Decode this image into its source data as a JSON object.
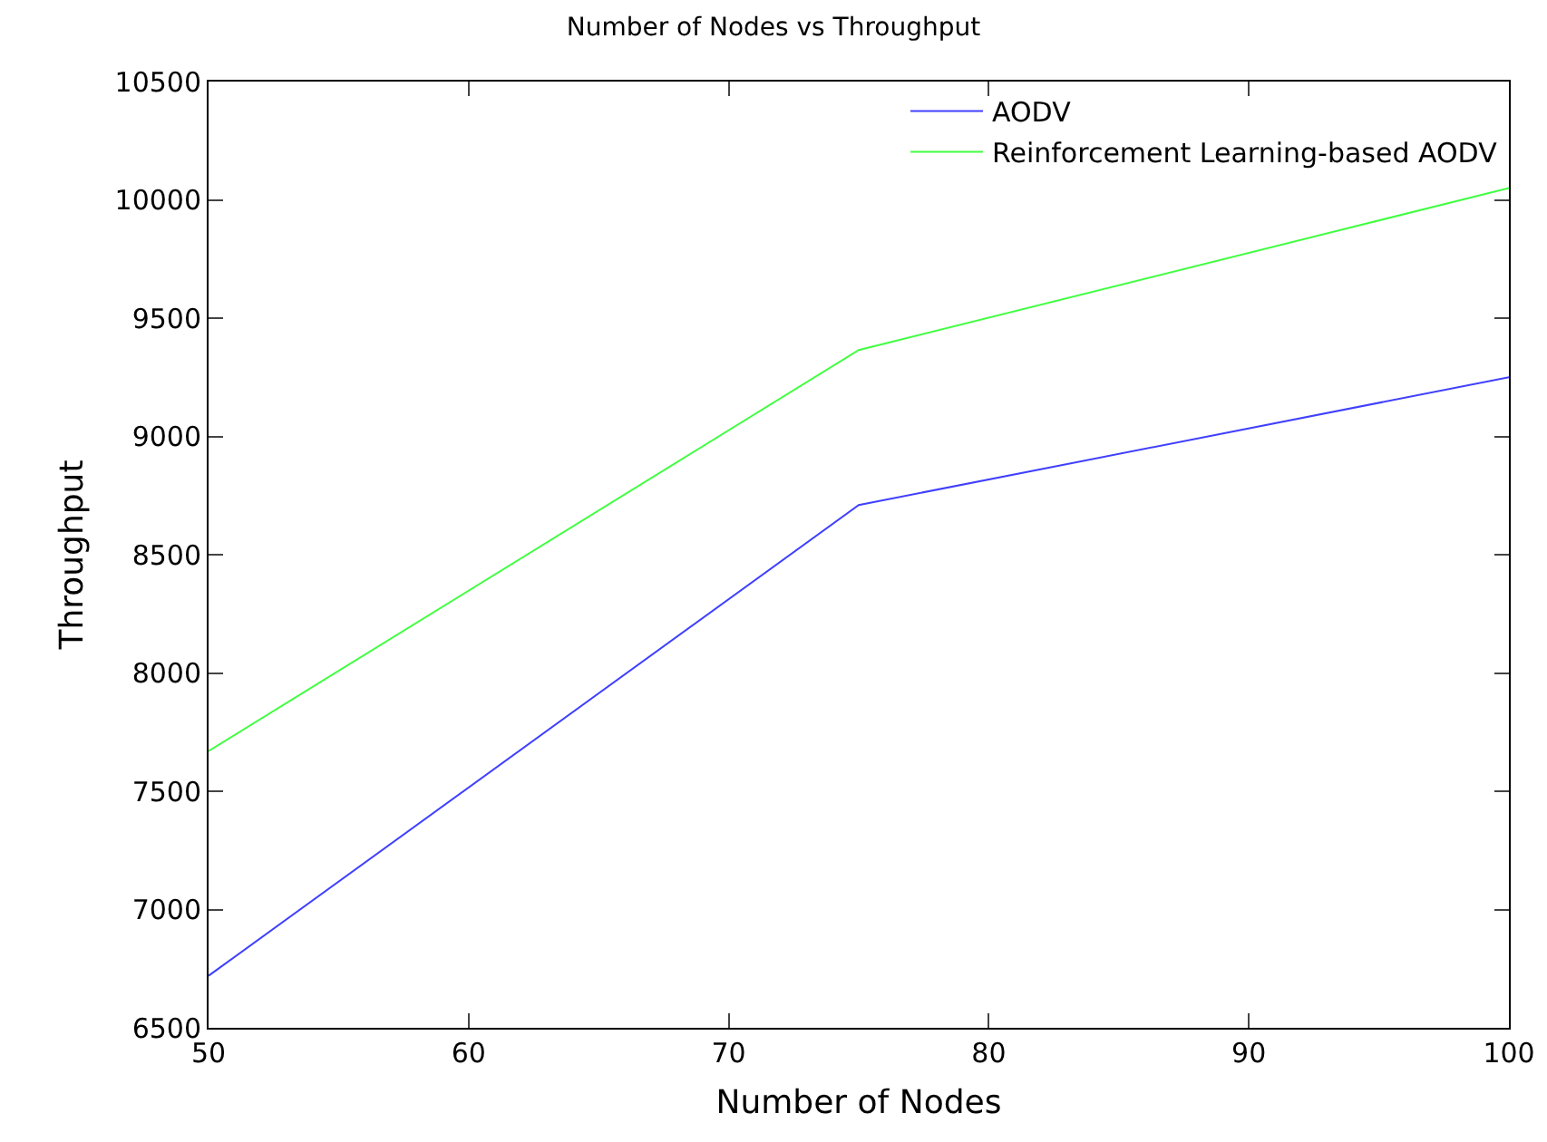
{
  "chart_data": {
    "type": "line",
    "title": "Number of Nodes vs Throughput",
    "xlabel": "Number of Nodes",
    "ylabel": "Throughput",
    "x": [
      50,
      75,
      100
    ],
    "series": [
      {
        "name": "AODV",
        "color": "#4040ff",
        "values": [
          6720,
          8710,
          9250
        ]
      },
      {
        "name": "Reinforcement Learning-based AODV",
        "color": "#40ff40",
        "values": [
          7670,
          9365,
          10050
        ]
      }
    ],
    "xlim": [
      50,
      100
    ],
    "xticks": [
      50,
      60,
      70,
      80,
      90,
      100
    ],
    "ylim": [
      6500,
      10500
    ],
    "yticks": [
      6500,
      7000,
      7500,
      8000,
      8500,
      9000,
      9500,
      10000,
      10500
    ],
    "grid": false,
    "legend": "top right",
    "marker": "none",
    "line_style": "solid"
  }
}
